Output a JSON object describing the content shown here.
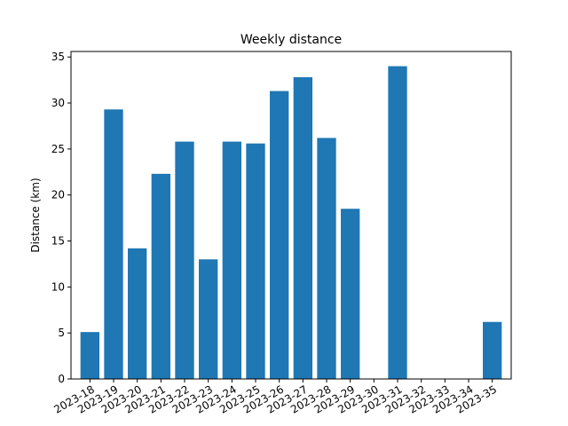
{
  "chart_data": {
    "type": "bar",
    "title": "Weekly distance",
    "xlabel": "",
    "ylabel": "Distance (km)",
    "ylim": [
      0,
      35.6
    ],
    "yticks": [
      0,
      5,
      10,
      15,
      20,
      25,
      30,
      35
    ],
    "grid": false,
    "legend": "none",
    "color": "#1f77b4",
    "categories": [
      "2023-18",
      "2023-19",
      "2023-20",
      "2023-21",
      "2023-22",
      "2023-23",
      "2023-24",
      "2023-25",
      "2023-26",
      "2023-27",
      "2023-28",
      "2023-29",
      "2023-30",
      "2023-31",
      "2023-32",
      "2023-33",
      "2023-34",
      "2023-35"
    ],
    "values": [
      5.1,
      29.3,
      14.2,
      22.3,
      25.8,
      13.0,
      25.8,
      25.6,
      31.3,
      32.8,
      26.2,
      18.5,
      0,
      34.0,
      0,
      0,
      0,
      6.2
    ]
  }
}
